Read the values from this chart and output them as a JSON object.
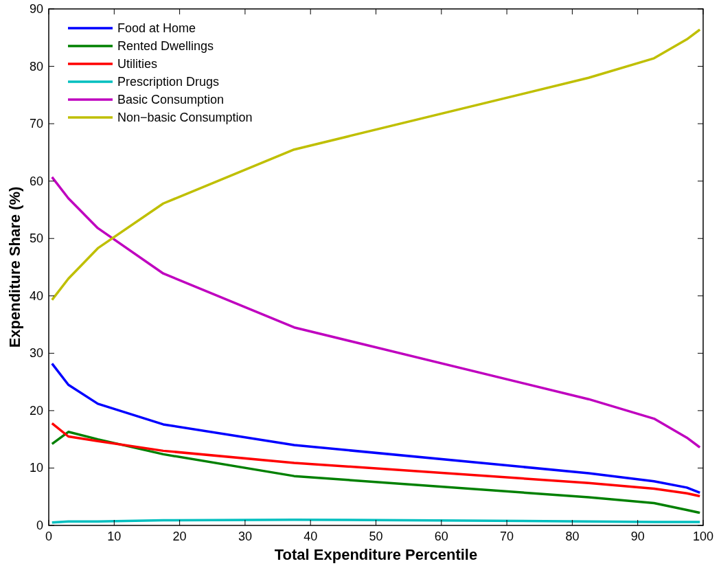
{
  "chart_data": {
    "type": "line",
    "xlabel": "Total Expenditure Percentile",
    "ylabel": "Expenditure Share (%)",
    "x": [
      0.5,
      3,
      7.5,
      17.5,
      37.5,
      82.5,
      92.5,
      97.5,
      99.5
    ],
    "series": [
      {
        "name": "Food at Home",
        "color": "#0000ff",
        "values": [
          28.2,
          24.5,
          21.2,
          17.6,
          14.0,
          9.1,
          7.7,
          6.6,
          5.7
        ]
      },
      {
        "name": "Rented Dwellings",
        "color": "#008000",
        "values": [
          14.2,
          16.3,
          15.0,
          12.4,
          8.6,
          4.9,
          3.9,
          2.7,
          2.2
        ]
      },
      {
        "name": "Utilities",
        "color": "#ff0000",
        "values": [
          17.8,
          15.5,
          14.7,
          13.0,
          10.9,
          7.4,
          6.4,
          5.6,
          5.1
        ]
      },
      {
        "name": "Prescription Drugs",
        "color": "#00bfbf",
        "values": [
          0.5,
          0.7,
          0.7,
          0.9,
          1.0,
          0.7,
          0.6,
          0.6,
          0.6
        ]
      },
      {
        "name": "Basic Consumption",
        "color": "#bf00bf",
        "values": [
          60.7,
          57.0,
          51.8,
          43.9,
          34.5,
          22.0,
          18.6,
          15.3,
          13.6
        ]
      },
      {
        "name": "Non−basic Consumption",
        "color": "#bfbf00",
        "values": [
          39.3,
          43.0,
          48.3,
          56.1,
          65.5,
          78.0,
          81.4,
          84.7,
          86.4
        ]
      }
    ],
    "xlim": [
      0,
      100
    ],
    "xticks": [
      0,
      10,
      20,
      30,
      40,
      50,
      60,
      70,
      80,
      90,
      100
    ],
    "ylim": [
      0,
      90
    ],
    "yticks": [
      0,
      10,
      20,
      30,
      40,
      50,
      60,
      70,
      80,
      90
    ],
    "grid": false,
    "legend": "top left",
    "marker": "none",
    "line_style": "solid"
  }
}
